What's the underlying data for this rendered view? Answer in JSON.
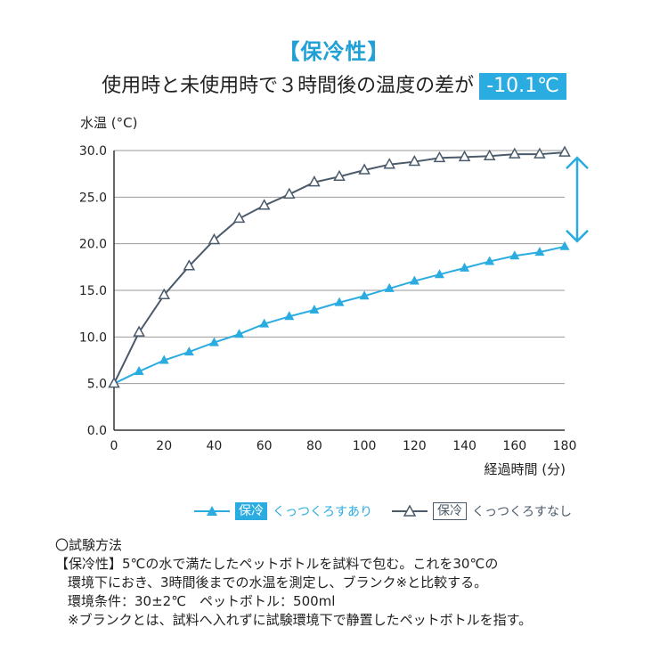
{
  "header": {
    "title": "【保冷性】",
    "subtitle": "使用時と未使用時で３時間後の温度の差が",
    "diff": "-10.1℃"
  },
  "chart_data": {
    "type": "line",
    "ylabel": "水温 (°C)",
    "xlabel": "経過時間 (分)",
    "xlim": [
      0,
      180
    ],
    "ylim": [
      0,
      30
    ],
    "xticks": [
      0,
      20,
      40,
      60,
      80,
      100,
      120,
      140,
      160,
      180
    ],
    "yticks": [
      "0.0",
      "5.0",
      "10.0",
      "15.0",
      "20.0",
      "25.0",
      "30.0"
    ],
    "grid": true,
    "series": [
      {
        "tag": "保冷",
        "name": "くっつくろすあり",
        "color": "#2aace0",
        "marker": "filled-triangle",
        "x": [
          0,
          10,
          20,
          30,
          40,
          50,
          60,
          70,
          80,
          90,
          100,
          110,
          120,
          130,
          140,
          150,
          160,
          170,
          180
        ],
        "values": [
          5.0,
          6.3,
          7.5,
          8.4,
          9.4,
          10.3,
          11.4,
          12.2,
          12.9,
          13.7,
          14.4,
          15.2,
          16.0,
          16.7,
          17.4,
          18.1,
          18.7,
          19.1,
          19.7
        ]
      },
      {
        "tag": "保冷",
        "name": "くっつくろすなし",
        "color": "#4a5a6a",
        "marker": "open-triangle",
        "x": [
          0,
          10,
          20,
          30,
          40,
          50,
          60,
          70,
          80,
          90,
          100,
          110,
          120,
          130,
          140,
          150,
          160,
          170,
          180
        ],
        "values": [
          5.0,
          10.5,
          14.5,
          17.6,
          20.4,
          22.7,
          24.1,
          25.3,
          26.6,
          27.2,
          27.9,
          28.5,
          28.8,
          29.2,
          29.3,
          29.4,
          29.6,
          29.6,
          29.8
        ]
      }
    ],
    "annotation": "double-arrow-difference",
    "arrow_color": "#2aace0"
  },
  "notes": [
    "〇試験方法",
    "【保冷性】5℃の水で満たしたペットボトルを試料で包む。これを30℃の",
    "環境下におき、3時間後までの水温を測定し、ブランク※と比較する。",
    "環境条件：30±2℃　ペットボトル：500ml",
    "※ブランクとは、試料へ入れずに試験環境下で静置したペットボトルを指す。"
  ]
}
